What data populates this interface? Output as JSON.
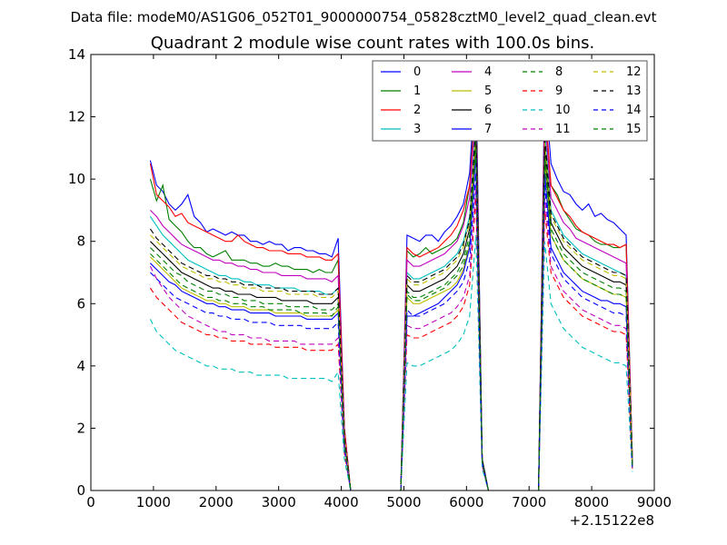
{
  "figure": {
    "suptitle": "Data file: modeM0/AS1G06_052T01_9000000754_05828cztM0_level2_quad_clean.evt"
  },
  "chart_data": {
    "type": "line",
    "title": "Quadrant 2 module wise count rates with 100.0s bins.",
    "xlabel": "",
    "ylabel": "",
    "x_offset_label": "+2.15122e8",
    "xlim": [
      0,
      9000
    ],
    "ylim": [
      0,
      14
    ],
    "xticks": [
      0,
      1000,
      2000,
      3000,
      4000,
      5000,
      6000,
      7000,
      8000,
      9000
    ],
    "yticks": [
      0,
      2,
      4,
      6,
      8,
      10,
      12,
      14
    ],
    "grid": false,
    "legend_position": "top-right",
    "x": [
      950,
      1050,
      1150,
      1250,
      1350,
      1450,
      1550,
      1650,
      1750,
      1850,
      1950,
      2050,
      2150,
      2250,
      2350,
      2450,
      2550,
      2650,
      2750,
      2850,
      2950,
      3050,
      3150,
      3250,
      3350,
      3450,
      3550,
      3650,
      3750,
      3850,
      3950,
      4050,
      4150,
      4950,
      5050,
      5150,
      5250,
      5350,
      5450,
      5550,
      5650,
      5750,
      5850,
      5950,
      6050,
      6150,
      6250,
      6350,
      7150,
      7250,
      7350,
      7450,
      7550,
      7650,
      7750,
      7850,
      7950,
      8050,
      8150,
      8250,
      8350,
      8450,
      8550,
      8650
    ],
    "series": [
      {
        "name": "0",
        "color": "#0000ff",
        "dash": "solid",
        "values": [
          10.6,
          9.8,
          9.6,
          9.2,
          9.0,
          9.2,
          9.5,
          8.8,
          8.6,
          8.3,
          8.4,
          8.3,
          8.2,
          8.3,
          8.2,
          8.2,
          8.0,
          8.0,
          7.9,
          8.0,
          7.9,
          7.9,
          7.7,
          7.8,
          7.8,
          7.7,
          7.7,
          7.6,
          7.6,
          7.5,
          8.1,
          2.0,
          0.0,
          0.0,
          8.2,
          8.1,
          8.0,
          8.2,
          8.2,
          8.0,
          8.3,
          8.5,
          8.8,
          9.2,
          10.2,
          13.5,
          1.0,
          0.0,
          0.0,
          13.1,
          10.5,
          10.0,
          9.6,
          9.5,
          9.2,
          9.0,
          9.2,
          8.8,
          8.9,
          8.7,
          8.6,
          8.4,
          8.2,
          1.0
        ]
      },
      {
        "name": "1",
        "color": "#008000",
        "dash": "solid",
        "values": [
          10.0,
          9.3,
          9.8,
          8.7,
          8.5,
          8.3,
          8.0,
          7.8,
          7.8,
          7.6,
          7.5,
          7.6,
          7.7,
          7.4,
          7.4,
          7.4,
          7.3,
          7.3,
          7.2,
          7.2,
          7.3,
          7.2,
          7.2,
          7.1,
          7.1,
          7.1,
          7.0,
          7.1,
          7.0,
          7.0,
          7.4,
          1.9,
          0.0,
          0.0,
          7.7,
          7.5,
          7.6,
          7.8,
          7.6,
          7.7,
          7.8,
          7.9,
          8.1,
          8.6,
          9.8,
          12.9,
          1.0,
          0.0,
          0.0,
          12.2,
          9.8,
          9.5,
          9.0,
          8.7,
          8.4,
          8.3,
          8.2,
          8.0,
          7.9,
          7.9,
          7.8,
          7.8,
          7.9,
          1.0
        ]
      },
      {
        "name": "2",
        "color": "#ff0000",
        "dash": "solid",
        "values": [
          10.5,
          9.5,
          9.3,
          9.1,
          8.8,
          8.9,
          8.6,
          8.5,
          8.4,
          8.3,
          8.2,
          8.1,
          8.0,
          8.0,
          8.2,
          8.0,
          7.9,
          7.8,
          7.8,
          7.7,
          7.7,
          7.7,
          7.6,
          7.6,
          7.6,
          7.5,
          7.5,
          7.5,
          7.4,
          7.4,
          7.6,
          2.0,
          0.0,
          0.0,
          7.8,
          7.6,
          7.5,
          7.6,
          7.7,
          7.8,
          8.0,
          8.2,
          8.5,
          9.0,
          9.8,
          12.5,
          1.0,
          0.0,
          0.0,
          12.5,
          9.8,
          9.4,
          9.0,
          8.8,
          8.5,
          8.3,
          8.2,
          8.1,
          8.0,
          7.9,
          7.9,
          7.8,
          7.9,
          1.0
        ]
      },
      {
        "name": "3",
        "color": "#00bfbf",
        "dash": "solid",
        "values": [
          8.8,
          8.5,
          8.2,
          8.0,
          7.8,
          7.6,
          7.4,
          7.3,
          7.2,
          7.1,
          7.0,
          6.9,
          6.9,
          6.8,
          6.8,
          6.7,
          6.7,
          6.6,
          6.6,
          6.6,
          6.5,
          6.5,
          6.5,
          6.5,
          6.4,
          6.4,
          6.4,
          6.4,
          6.3,
          6.3,
          6.5,
          1.7,
          0.0,
          0.0,
          7.0,
          6.8,
          6.8,
          6.9,
          7.0,
          7.1,
          7.2,
          7.4,
          7.6,
          8.0,
          8.8,
          11.8,
          1.0,
          0.0,
          0.0,
          11.5,
          9.0,
          8.6,
          8.2,
          8.0,
          7.8,
          7.6,
          7.5,
          7.4,
          7.3,
          7.2,
          7.1,
          7.0,
          6.9,
          0.9
        ]
      },
      {
        "name": "4",
        "color": "#bf00bf",
        "dash": "solid",
        "values": [
          9.0,
          8.8,
          8.5,
          8.3,
          8.1,
          7.9,
          7.8,
          7.7,
          7.6,
          7.5,
          7.4,
          7.4,
          7.3,
          7.3,
          7.2,
          7.2,
          7.1,
          7.1,
          7.0,
          7.0,
          7.0,
          6.9,
          6.9,
          6.9,
          6.9,
          6.8,
          6.8,
          6.8,
          6.8,
          6.7,
          6.9,
          1.8,
          0.0,
          0.0,
          7.4,
          7.2,
          7.2,
          7.3,
          7.4,
          7.5,
          7.6,
          7.8,
          8.0,
          8.5,
          9.4,
          12.4,
          1.0,
          0.0,
          0.0,
          12.0,
          9.4,
          9.0,
          8.6,
          8.4,
          8.1,
          8.0,
          7.9,
          7.8,
          7.7,
          7.6,
          7.5,
          7.4,
          7.3,
          0.9
        ]
      },
      {
        "name": "5",
        "color": "#bfbf00",
        "dash": "solid",
        "values": [
          7.5,
          7.3,
          7.1,
          6.9,
          6.7,
          6.5,
          6.4,
          6.3,
          6.2,
          6.1,
          6.1,
          6.0,
          6.0,
          5.9,
          5.9,
          5.9,
          5.8,
          5.8,
          5.8,
          5.8,
          5.7,
          5.7,
          5.7,
          5.7,
          5.7,
          5.6,
          5.6,
          5.6,
          5.6,
          5.6,
          5.8,
          1.5,
          0.0,
          0.0,
          6.2,
          6.0,
          6.0,
          6.1,
          6.2,
          6.3,
          6.4,
          6.5,
          6.7,
          7.1,
          7.9,
          11.0,
          0.9,
          0.0,
          0.0,
          10.6,
          8.2,
          7.8,
          7.4,
          7.2,
          7.0,
          6.8,
          6.7,
          6.6,
          6.5,
          6.4,
          6.3,
          6.3,
          6.2,
          0.8
        ]
      },
      {
        "name": "6",
        "color": "#000000",
        "dash": "solid",
        "values": [
          8.0,
          7.8,
          7.6,
          7.4,
          7.2,
          7.0,
          6.9,
          6.8,
          6.7,
          6.6,
          6.5,
          6.5,
          6.4,
          6.4,
          6.3,
          6.3,
          6.3,
          6.2,
          6.2,
          6.2,
          6.2,
          6.1,
          6.1,
          6.1,
          6.1,
          6.1,
          6.0,
          6.0,
          6.0,
          6.0,
          6.2,
          1.6,
          0.0,
          0.0,
          6.6,
          6.4,
          6.4,
          6.5,
          6.6,
          6.7,
          6.8,
          7.0,
          7.2,
          7.6,
          8.4,
          11.5,
          1.0,
          0.0,
          0.0,
          11.0,
          8.6,
          8.2,
          7.8,
          7.6,
          7.4,
          7.2,
          7.1,
          7.0,
          6.9,
          6.8,
          6.7,
          6.7,
          6.6,
          0.8
        ]
      },
      {
        "name": "7",
        "color": "#0000ff",
        "dash": "solid",
        "values": [
          7.3,
          7.1,
          6.9,
          6.7,
          6.6,
          6.4,
          6.3,
          6.2,
          6.1,
          6.0,
          6.0,
          5.9,
          5.9,
          5.8,
          5.8,
          5.8,
          5.7,
          5.7,
          5.7,
          5.7,
          5.6,
          5.6,
          5.6,
          5.6,
          5.6,
          5.5,
          5.5,
          5.5,
          5.5,
          5.5,
          5.7,
          1.5,
          0.0,
          0.0,
          5.6,
          5.6,
          5.7,
          5.8,
          5.9,
          6.0,
          6.2,
          6.4,
          6.6,
          7.0,
          7.8,
          10.8,
          0.9,
          0.0,
          0.0,
          10.2,
          7.8,
          7.4,
          7.0,
          6.8,
          6.6,
          6.4,
          6.3,
          6.2,
          6.1,
          6.1,
          6.0,
          6.0,
          5.9,
          0.8
        ]
      },
      {
        "name": "8",
        "color": "#008000",
        "dash": "dashed",
        "values": [
          7.8,
          7.6,
          7.4,
          7.2,
          7.0,
          6.9,
          6.7,
          6.6,
          6.5,
          6.4,
          6.4,
          6.3,
          6.3,
          6.2,
          6.2,
          6.1,
          6.1,
          6.1,
          6.0,
          6.0,
          6.0,
          6.0,
          5.9,
          5.9,
          5.9,
          5.9,
          5.9,
          5.8,
          5.8,
          5.8,
          6.0,
          1.6,
          0.0,
          0.0,
          6.4,
          6.2,
          6.2,
          6.3,
          6.4,
          6.5,
          6.6,
          6.8,
          7.0,
          7.4,
          8.2,
          11.2,
          0.9,
          0.0,
          0.0,
          10.8,
          8.4,
          8.0,
          7.6,
          7.4,
          7.2,
          7.0,
          6.9,
          6.8,
          6.7,
          6.6,
          6.5,
          6.5,
          6.4,
          0.8
        ]
      },
      {
        "name": "9",
        "color": "#ff0000",
        "dash": "dashed",
        "values": [
          6.5,
          6.2,
          6.0,
          5.8,
          5.6,
          5.4,
          5.3,
          5.2,
          5.1,
          5.0,
          5.0,
          4.9,
          4.9,
          4.8,
          4.8,
          4.8,
          4.7,
          4.7,
          4.7,
          4.7,
          4.6,
          4.6,
          4.6,
          4.6,
          4.6,
          4.5,
          4.5,
          4.5,
          4.5,
          4.5,
          4.7,
          1.2,
          0.0,
          0.0,
          5.0,
          4.9,
          4.9,
          5.0,
          5.1,
          5.2,
          5.3,
          5.4,
          5.6,
          5.9,
          6.6,
          9.4,
          0.8,
          0.0,
          0.0,
          9.0,
          7.0,
          6.6,
          6.2,
          6.0,
          5.8,
          5.6,
          5.5,
          5.4,
          5.3,
          5.2,
          5.1,
          5.1,
          5.0,
          0.7
        ]
      },
      {
        "name": "10",
        "color": "#00bfbf",
        "dash": "dashed",
        "values": [
          5.5,
          5.1,
          4.9,
          4.7,
          4.5,
          4.4,
          4.3,
          4.2,
          4.1,
          4.0,
          4.0,
          3.9,
          3.9,
          3.9,
          3.8,
          3.8,
          3.8,
          3.7,
          3.7,
          3.7,
          3.7,
          3.7,
          3.6,
          3.6,
          3.6,
          3.6,
          3.6,
          3.6,
          3.6,
          3.5,
          3.8,
          1.0,
          0.0,
          0.0,
          4.1,
          4.0,
          4.0,
          4.1,
          4.2,
          4.3,
          4.4,
          4.5,
          4.7,
          5.0,
          5.6,
          8.2,
          0.7,
          0.0,
          0.0,
          8.0,
          6.0,
          5.6,
          5.2,
          5.0,
          4.8,
          4.6,
          4.5,
          4.4,
          4.3,
          4.2,
          4.1,
          4.1,
          4.0,
          0.6
        ]
      },
      {
        "name": "11",
        "color": "#bf00bf",
        "dash": "dashed",
        "values": [
          7.2,
          6.8,
          6.5,
          6.2,
          6.0,
          5.8,
          5.6,
          5.5,
          5.4,
          5.3,
          5.2,
          5.1,
          5.1,
          5.0,
          5.0,
          5.0,
          4.9,
          4.9,
          4.9,
          4.8,
          4.8,
          4.8,
          4.8,
          4.8,
          4.7,
          4.7,
          4.7,
          4.7,
          4.7,
          4.7,
          4.9,
          1.3,
          0.0,
          0.0,
          5.3,
          5.2,
          5.2,
          5.3,
          5.4,
          5.5,
          5.6,
          5.7,
          5.9,
          6.2,
          6.9,
          9.8,
          0.8,
          0.0,
          0.0,
          9.4,
          7.2,
          6.8,
          6.4,
          6.2,
          6.0,
          5.8,
          5.7,
          5.6,
          5.5,
          5.4,
          5.3,
          5.3,
          5.2,
          0.7
        ]
      },
      {
        "name": "12",
        "color": "#bfbf00",
        "dash": "dashed",
        "values": [
          8.2,
          8.0,
          7.8,
          7.6,
          7.4,
          7.2,
          7.1,
          7.0,
          6.9,
          6.8,
          6.8,
          6.7,
          6.7,
          6.6,
          6.6,
          6.5,
          6.5,
          6.5,
          6.4,
          6.4,
          6.4,
          6.4,
          6.3,
          6.3,
          6.3,
          6.3,
          6.3,
          6.2,
          6.2,
          6.2,
          6.4,
          1.7,
          0.0,
          0.0,
          6.8,
          6.6,
          6.6,
          6.7,
          6.8,
          6.9,
          7.0,
          7.2,
          7.4,
          7.8,
          8.6,
          11.6,
          1.0,
          0.0,
          0.0,
          11.2,
          8.8,
          8.4,
          8.0,
          7.8,
          7.6,
          7.4,
          7.3,
          7.2,
          7.1,
          7.0,
          6.9,
          6.9,
          6.8,
          0.8
        ]
      },
      {
        "name": "13",
        "color": "#000000",
        "dash": "dashed",
        "values": [
          8.4,
          8.1,
          7.9,
          7.7,
          7.5,
          7.3,
          7.2,
          7.1,
          7.0,
          6.9,
          6.9,
          6.8,
          6.8,
          6.7,
          6.7,
          6.6,
          6.6,
          6.6,
          6.5,
          6.5,
          6.5,
          6.5,
          6.4,
          6.4,
          6.4,
          6.4,
          6.4,
          6.3,
          6.3,
          6.3,
          6.5,
          1.7,
          0.0,
          0.0,
          6.9,
          6.7,
          6.7,
          6.8,
          6.9,
          7.0,
          7.1,
          7.3,
          7.5,
          7.9,
          8.7,
          11.8,
          1.0,
          0.0,
          0.0,
          11.4,
          8.9,
          8.5,
          8.1,
          7.9,
          7.7,
          7.5,
          7.4,
          7.3,
          7.2,
          7.1,
          7.0,
          7.0,
          6.9,
          0.8
        ]
      },
      {
        "name": "14",
        "color": "#0000ff",
        "dash": "dashed",
        "values": [
          7.0,
          6.8,
          6.6,
          6.4,
          6.2,
          6.1,
          6.0,
          5.9,
          5.8,
          5.7,
          5.7,
          5.6,
          5.6,
          5.5,
          5.5,
          5.5,
          5.4,
          5.4,
          5.4,
          5.4,
          5.3,
          5.3,
          5.3,
          5.3,
          5.3,
          5.2,
          5.2,
          5.2,
          5.2,
          5.2,
          5.4,
          1.4,
          0.0,
          0.0,
          5.8,
          5.6,
          5.6,
          5.7,
          5.8,
          5.9,
          6.0,
          6.2,
          6.4,
          6.7,
          7.4,
          10.2,
          0.9,
          0.0,
          0.0,
          9.8,
          7.6,
          7.2,
          6.8,
          6.6,
          6.4,
          6.2,
          6.1,
          6.0,
          5.9,
          5.8,
          5.7,
          5.7,
          5.6,
          0.7
        ]
      },
      {
        "name": "15",
        "color": "#008000",
        "dash": "dashed",
        "values": [
          7.6,
          7.4,
          7.2,
          7.0,
          6.8,
          6.6,
          6.5,
          6.4,
          6.3,
          6.2,
          6.2,
          6.1,
          6.1,
          6.0,
          6.0,
          6.0,
          5.9,
          5.9,
          5.9,
          5.8,
          5.8,
          5.8,
          5.8,
          5.8,
          5.7,
          5.7,
          5.7,
          5.7,
          5.7,
          5.6,
          5.9,
          1.5,
          0.0,
          0.0,
          6.3,
          6.1,
          6.1,
          6.2,
          6.3,
          6.4,
          6.5,
          6.7,
          6.9,
          7.2,
          8.0,
          11.0,
          0.9,
          0.0,
          0.0,
          10.6,
          8.2,
          7.8,
          7.4,
          7.2,
          7.0,
          6.8,
          6.7,
          6.6,
          6.5,
          6.4,
          6.3,
          6.3,
          6.2,
          0.8
        ]
      }
    ]
  }
}
